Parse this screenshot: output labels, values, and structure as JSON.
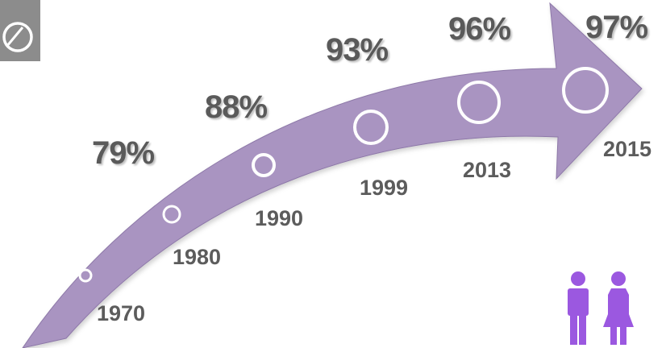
{
  "colors": {
    "arrow": "#a994c1",
    "arrow_edge": "#8d78a8",
    "marker_stroke": "#ffffff",
    "people_icons": "#9b58e0",
    "logo_background": "#8c8c8c",
    "text": "#5a5a5a"
  },
  "icons": {
    "logo": "circle-logo-icon",
    "people": [
      "man-icon",
      "woman-icon"
    ]
  },
  "timeline": [
    {
      "year": "1970",
      "percent": ""
    },
    {
      "year": "1980",
      "percent": "79%"
    },
    {
      "year": "1990",
      "percent": "88%"
    },
    {
      "year": "1999",
      "percent": "93%"
    },
    {
      "year": "2013",
      "percent": "96%"
    },
    {
      "year": "2015",
      "percent": "97%"
    }
  ]
}
